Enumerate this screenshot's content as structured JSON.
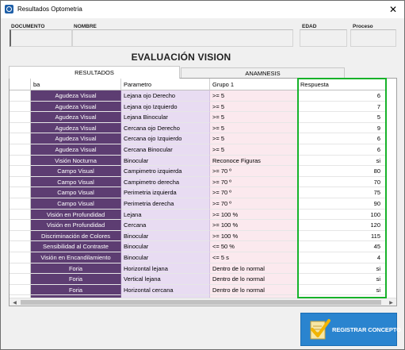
{
  "window": {
    "title": "Resultados Optometria",
    "icon": "app-icon",
    "close_icon": "close-icon"
  },
  "header": {
    "documento_label": "DOCUMENTO",
    "documento_value": "",
    "nombre_label": "NOMBRE",
    "nombre_value": "",
    "edad_label": "EDAD",
    "edad_value": "",
    "proceso_label": "Proceso",
    "proceso_value": ""
  },
  "main_title": "EVALUACIÓN VISION",
  "tabs": [
    {
      "label": "RESULTADOS",
      "active": true
    },
    {
      "label": "ANAMNESIS",
      "active": false
    }
  ],
  "table": {
    "columns": [
      "ba",
      "Parametro",
      "Grupo 1",
      "Respuesta"
    ],
    "rows": [
      {
        "prueba": "Agudeza Visual",
        "parametro": "Lejana ojo Derecho",
        "grupo": ">= 5",
        "respuesta": "6"
      },
      {
        "prueba": "Agudeza Visual",
        "parametro": "Lejana ojo Izquierdo",
        "grupo": ">= 5",
        "respuesta": "7"
      },
      {
        "prueba": "Agudeza Visual",
        "parametro": "Lejana Binocular",
        "grupo": ">= 5",
        "respuesta": "5"
      },
      {
        "prueba": "Agudeza Visual",
        "parametro": "Cercana ojo Derecho",
        "grupo": ">= 5",
        "respuesta": "9"
      },
      {
        "prueba": "Agudeza Visual",
        "parametro": "Cercana ojo Izquierdo",
        "grupo": ">= 5",
        "respuesta": "6"
      },
      {
        "prueba": "Agudeza Visual",
        "parametro": "Cercana Binocular",
        "grupo": ">= 5",
        "respuesta": "6"
      },
      {
        "prueba": "Visión Nocturna",
        "parametro": "Binocular",
        "grupo": "Reconoce Figuras",
        "respuesta": "si"
      },
      {
        "prueba": "Campo Visual",
        "parametro": "Campimetro izquierda",
        "grupo": ">= 70 º",
        "respuesta": "80"
      },
      {
        "prueba": "Campo Visual",
        "parametro": "Campimetro derecha",
        "grupo": ">= 70 º",
        "respuesta": "70"
      },
      {
        "prueba": "Campo Visual",
        "parametro": "Perimetria izquierda",
        "grupo": ">= 70 º",
        "respuesta": "75"
      },
      {
        "prueba": "Campo Visual",
        "parametro": "Perimetria derecha",
        "grupo": ">= 70 º",
        "respuesta": "90"
      },
      {
        "prueba": "Visión en Profundidad",
        "parametro": "Lejana",
        "grupo": ">= 100 %",
        "respuesta": "100"
      },
      {
        "prueba": "Visión en Profundidad",
        "parametro": "Cercana",
        "grupo": ">= 100 %",
        "respuesta": "120"
      },
      {
        "prueba": "Discriminación de Colores",
        "parametro": "Binocular",
        "grupo": ">= 100 %",
        "respuesta": "115"
      },
      {
        "prueba": "Sensibilidad al Contraste",
        "parametro": "Binocular",
        "grupo": "<= 50 %",
        "respuesta": "45"
      },
      {
        "prueba": "Visión en Encandilamiento",
        "parametro": "Binocular",
        "grupo": "<= 5 s",
        "respuesta": "4"
      },
      {
        "prueba": "Foria",
        "parametro": "Horizontal lejana",
        "grupo": "Dentro de lo normal",
        "respuesta": "si"
      },
      {
        "prueba": "Foria",
        "parametro": "Vertical lejana",
        "grupo": "Dentro de lo normal",
        "respuesta": "si"
      },
      {
        "prueba": "Foria",
        "parametro": "Horizontal cercana",
        "grupo": "Dentro de lo normal",
        "respuesta": "si"
      },
      {
        "prueba": "",
        "parametro": "",
        "grupo": "",
        "respuesta": ""
      }
    ]
  },
  "register_button": {
    "label": "REGISTRAR CONCEPTO",
    "icon": "checkmark-document-icon"
  },
  "colors": {
    "prueba_bg": "#5d3d72",
    "parametro_bg": "#e8dcf2",
    "grupo_bg": "#fbe9ee",
    "highlight_border": "#17b22a",
    "button_bg": "#2a84cf"
  }
}
